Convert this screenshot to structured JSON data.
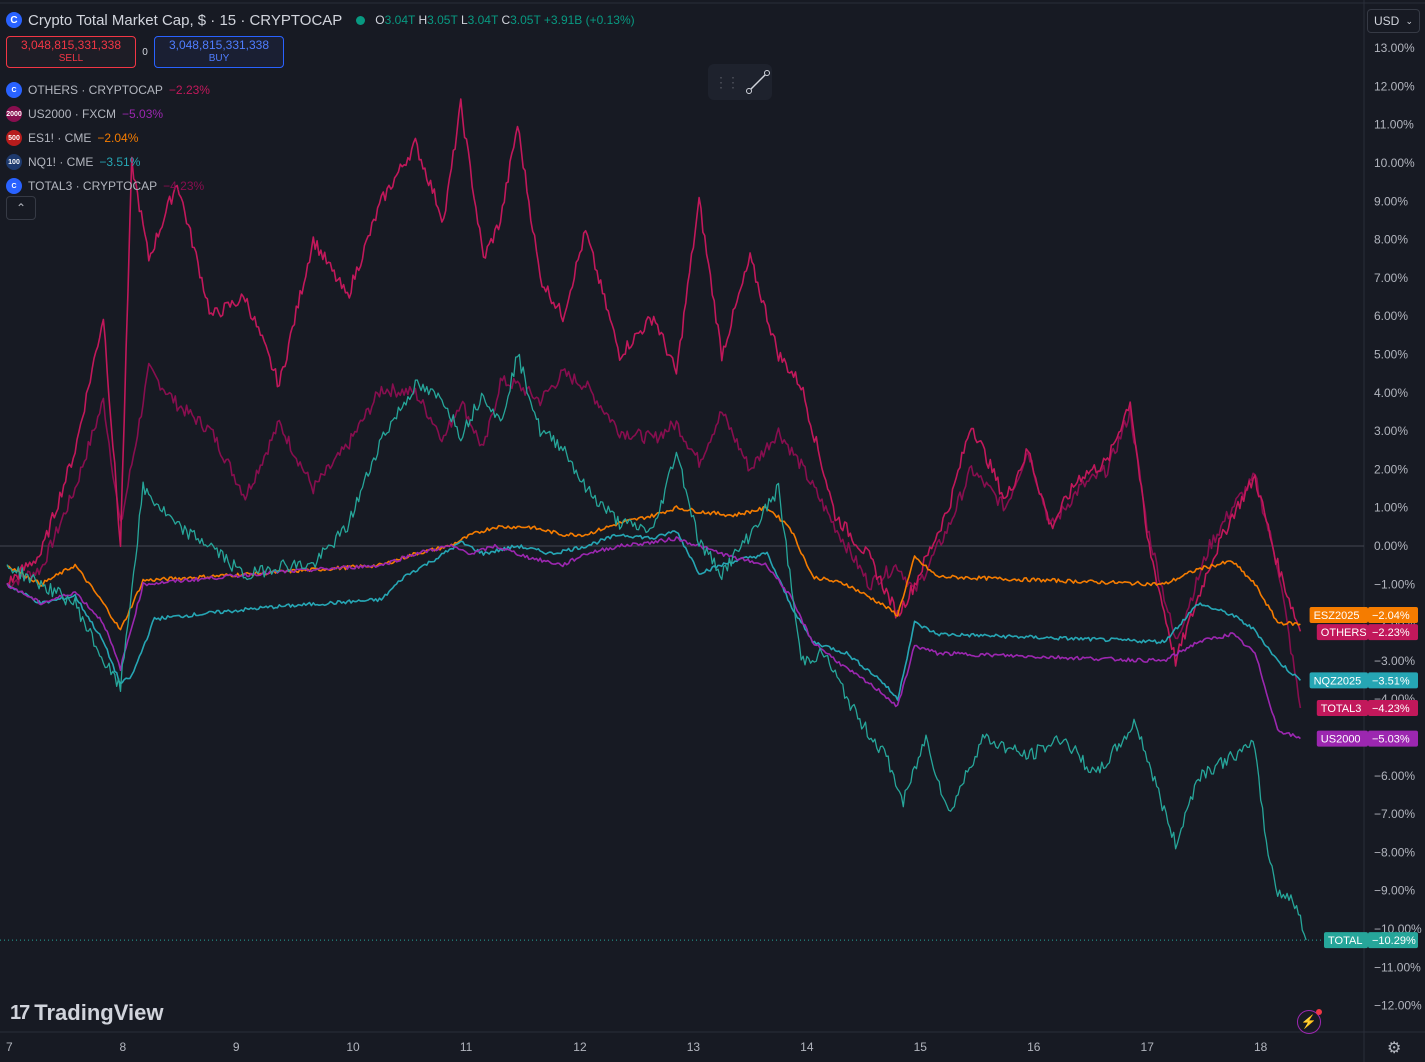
{
  "header": {
    "title": "Crypto Total Market Cap, $ · 15 · CRYPTOCAP",
    "ohlc": [
      {
        "k": "O",
        "v": "3.04T"
      },
      {
        "k": "H",
        "v": "3.05T"
      },
      {
        "k": "L",
        "v": "3.04T"
      },
      {
        "k": "C",
        "v": "3.05T"
      },
      {
        "k": "",
        "v": "+3.91B (+0.13%)"
      }
    ]
  },
  "trade": {
    "sell_price": "3,048,815,331,338",
    "sell_label": "SELL",
    "spread": "0",
    "buy_price": "3,048,815,331,338",
    "buy_label": "BUY"
  },
  "legend": [
    {
      "icon": "C",
      "icon_color": "#2962ff",
      "name": "OTHERS · CRYPTOCAP",
      "change": "−2.23%",
      "color": "#c2185b"
    },
    {
      "icon": "2000",
      "icon_color": "#880e4f",
      "name": "US2000 · FXCM",
      "change": "−5.03%",
      "color": "#9c27b0"
    },
    {
      "icon": "500",
      "icon_color": "#b71c1c",
      "name": "ES1! · CME",
      "change": "−2.04%",
      "color": "#f57c00"
    },
    {
      "icon": "100",
      "icon_color": "#1e3a6e",
      "name": "NQ1! · CME",
      "change": "−3.51%",
      "color": "#26a6b4"
    },
    {
      "icon": "C",
      "icon_color": "#2962ff",
      "name": "TOTAL3 · CRYPTOCAP",
      "change": "−4.23%",
      "color": "#880e4f"
    }
  ],
  "currency": "USD",
  "brand": "TradingView",
  "chart_data": {
    "type": "line",
    "x_ticks": [
      "7",
      "8",
      "9",
      "10",
      "11",
      "12",
      "13",
      "14",
      "15",
      "16",
      "17",
      "18"
    ],
    "y_ticks": [
      "13.00%",
      "12.00%",
      "11.00%",
      "10.00%",
      "9.00%",
      "8.00%",
      "7.00%",
      "6.00%",
      "5.00%",
      "4.00%",
      "3.00%",
      "2.00%",
      "1.00%",
      "0.00%",
      "−1.00%",
      "−2.00%",
      "−3.00%",
      "−4.00%",
      "−5.00%",
      "−6.00%",
      "−7.00%",
      "−8.00%",
      "−9.00%",
      "−10.00%",
      "−11.00%",
      "−12.00%"
    ],
    "ylim": [
      -12.7,
      13.6
    ],
    "xlim": [
      7,
      18.95
    ],
    "series": [
      {
        "name": "TOTAL3",
        "color": "#880e4f",
        "x": [
          7,
          7.3,
          7.6,
          7.85,
          8.0,
          8.25,
          8.5,
          8.8,
          9.1,
          9.4,
          9.7,
          10.0,
          10.3,
          10.6,
          10.85,
          11.0,
          11.2,
          11.35,
          11.5,
          11.7,
          11.9,
          12.1,
          12.4,
          12.7,
          12.9,
          13.1,
          13.3,
          13.55,
          13.8,
          14.0,
          14.3,
          14.6,
          14.85,
          15.0,
          15.3,
          15.5,
          15.8,
          16.0,
          16.2,
          16.45,
          16.7,
          16.9,
          17.05,
          17.3,
          17.6,
          17.8,
          18.0,
          18.2,
          18.4
        ],
        "y": [
          -1.0,
          -0.6,
          1.5,
          3.8,
          0.5,
          4.6,
          3.7,
          3.0,
          1.3,
          3.2,
          1.5,
          2.6,
          4.1,
          4.0,
          2.8,
          3.8,
          2.5,
          4.3,
          4.2,
          3.8,
          4.5,
          4.2,
          3.0,
          2.8,
          3.2,
          2.2,
          3.5,
          2.0,
          3.0,
          2.1,
          0.5,
          -1.0,
          -0.5,
          -1.2,
          0.5,
          2.0,
          1.0,
          2.5,
          0.5,
          1.5,
          2.0,
          3.5,
          0.5,
          -2.5,
          0.0,
          1.0,
          1.8,
          -0.5,
          -4.23
        ]
      },
      {
        "name": "OTHERS",
        "color": "#c2185b",
        "x": [
          7,
          7.3,
          7.6,
          7.85,
          8.0,
          8.1,
          8.25,
          8.5,
          8.8,
          9.1,
          9.4,
          9.7,
          10.0,
          10.3,
          10.6,
          10.85,
          11.0,
          11.2,
          11.35,
          11.5,
          11.7,
          11.9,
          12.1,
          12.4,
          12.7,
          12.9,
          13.1,
          13.3,
          13.55,
          13.8,
          14.0,
          14.3,
          14.6,
          14.85,
          15.0,
          15.3,
          15.5,
          15.8,
          16.0,
          16.2,
          16.45,
          16.7,
          16.9,
          17.05,
          17.3,
          17.6,
          17.8,
          18.0,
          18.2,
          18.4
        ],
        "y": [
          -1.0,
          -0.2,
          2.5,
          6.0,
          0.0,
          10.0,
          7.5,
          9.5,
          6.0,
          6.5,
          4.2,
          8.0,
          6.5,
          9.0,
          10.5,
          8.5,
          11.5,
          7.5,
          8.5,
          11.0,
          7.0,
          6.0,
          8.2,
          5.0,
          6.0,
          4.5,
          9.0,
          5.0,
          7.5,
          5.0,
          4.2,
          0.8,
          -0.3,
          -1.8,
          -1.0,
          1.0,
          3.2,
          1.2,
          2.5,
          0.5,
          1.8,
          2.2,
          3.8,
          0.2,
          -3.0,
          -0.5,
          0.8,
          1.8,
          -0.5,
          -2.23
        ]
      },
      {
        "name": "ES1!",
        "color": "#f57c00",
        "x": [
          7,
          7.3,
          7.6,
          7.85,
          8.0,
          8.2,
          9.3,
          10.3,
          10.6,
          10.9,
          11.1,
          11.3,
          11.6,
          11.9,
          12.1,
          12.4,
          12.7,
          12.9,
          13.1,
          13.4,
          13.7,
          13.9,
          14.1,
          14.4,
          14.7,
          14.85,
          15.0,
          15.2,
          17.2,
          17.5,
          17.8,
          18.0,
          18.2,
          18.4
        ],
        "y": [
          -0.5,
          -1.0,
          -0.5,
          -1.5,
          -2.2,
          -0.9,
          -0.7,
          -0.5,
          -0.2,
          0.0,
          0.3,
          0.5,
          0.5,
          0.3,
          0.3,
          0.6,
          0.8,
          1.0,
          0.9,
          0.8,
          1.0,
          0.5,
          -0.8,
          -1.0,
          -1.5,
          -1.8,
          -0.3,
          -0.8,
          -1.0,
          -0.6,
          -0.4,
          -1.0,
          -2.0,
          -2.04
        ]
      },
      {
        "name": "NQ1!",
        "color": "#26a6b4",
        "x": [
          7,
          7.3,
          7.6,
          7.85,
          8.0,
          8.1,
          8.3,
          9.3,
          10.3,
          10.5,
          10.8,
          11.0,
          11.2,
          11.5,
          11.8,
          12.1,
          12.4,
          12.7,
          12.9,
          13.1,
          13.4,
          13.7,
          13.9,
          14.1,
          14.4,
          14.7,
          14.85,
          15.0,
          15.2,
          17.2,
          17.5,
          17.8,
          18.0,
          18.2,
          18.4
        ],
        "y": [
          -1.0,
          -1.5,
          -1.3,
          -2.5,
          -3.6,
          -3.4,
          -1.9,
          -1.6,
          -1.4,
          -0.8,
          -0.3,
          0.1,
          -0.2,
          0.0,
          -0.2,
          0.0,
          0.3,
          0.2,
          0.4,
          -0.7,
          -0.4,
          -0.2,
          -1.5,
          -2.5,
          -2.8,
          -3.5,
          -4.0,
          -2.0,
          -2.3,
          -2.5,
          -1.5,
          -1.8,
          -2.2,
          -3.0,
          -3.51
        ]
      },
      {
        "name": "US2000",
        "color": "#9c27b0",
        "x": [
          7,
          7.3,
          7.6,
          7.85,
          8.0,
          8.2,
          9.3,
          10.3,
          10.6,
          10.9,
          11.1,
          11.3,
          11.6,
          11.9,
          12.1,
          12.4,
          12.7,
          12.9,
          13.1,
          13.4,
          13.7,
          13.9,
          14.1,
          14.4,
          14.7,
          14.85,
          15.0,
          15.2,
          17.2,
          17.5,
          17.8,
          18.0,
          18.2,
          18.4
        ],
        "y": [
          -1.0,
          -1.5,
          -1.2,
          -2.0,
          -3.2,
          -1.0,
          -0.7,
          -0.5,
          -0.2,
          0.0,
          -0.2,
          0.0,
          -0.3,
          -0.5,
          -0.2,
          0.0,
          0.1,
          0.2,
          0.0,
          -0.3,
          -0.5,
          -1.3,
          -2.5,
          -3.2,
          -3.8,
          -4.2,
          -2.6,
          -2.8,
          -3.0,
          -2.5,
          -2.3,
          -2.8,
          -4.8,
          -5.03
        ]
      },
      {
        "name": "TOTAL",
        "color": "#26a69a",
        "x": [
          7,
          7.3,
          7.6,
          7.85,
          8.0,
          8.2,
          8.5,
          8.8,
          9.1,
          9.4,
          9.7,
          10.0,
          10.3,
          10.6,
          10.85,
          11.0,
          11.2,
          11.35,
          11.5,
          11.7,
          11.9,
          12.1,
          12.4,
          12.7,
          12.9,
          13.1,
          13.3,
          13.55,
          13.8,
          14.0,
          14.2,
          14.5,
          14.75,
          14.9,
          15.1,
          15.3,
          15.6,
          16.0,
          16.3,
          16.6,
          16.8,
          16.95,
          17.1,
          17.3,
          17.5,
          17.8,
          18.0,
          18.1,
          18.2,
          18.35,
          18.45
        ],
        "y": [
          -0.5,
          -1.0,
          -1.5,
          -3.0,
          -3.7,
          1.5,
          0.5,
          0.0,
          -0.8,
          -0.5,
          -0.5,
          0.5,
          2.8,
          4.2,
          3.8,
          2.9,
          4.0,
          3.2,
          5.0,
          3.0,
          2.6,
          1.5,
          0.6,
          0.4,
          2.5,
          0.1,
          -0.7,
          0.3,
          1.5,
          -3.0,
          -2.8,
          -4.5,
          -5.5,
          -6.7,
          -5.0,
          -7.0,
          -5.0,
          -5.5,
          -5.0,
          -6.0,
          -5.2,
          -4.6,
          -6.0,
          -7.8,
          -6.0,
          -5.5,
          -5.2,
          -7.8,
          -9.0,
          -9.3,
          -10.29
        ]
      }
    ],
    "labels": [
      {
        "name": "ESZ2025",
        "value": "−2.04%",
        "color": "#f57c00",
        "at": -1.8
      },
      {
        "name": "OTHERS",
        "value": "−2.23%",
        "color": "#c2185b",
        "at": -2.25
      },
      {
        "name": "NQZ2025",
        "value": "−3.51%",
        "color": "#26a6b4",
        "at": -3.51
      },
      {
        "name": "TOTAL3",
        "value": "−4.23%",
        "color": "#c2185b",
        "at": -4.23
      },
      {
        "name": "US2000",
        "value": "−5.03%",
        "color": "#9c27b0",
        "at": -5.03
      },
      {
        "name": "TOTAL",
        "value": "−10.29%",
        "color": "#26a69a",
        "at": -10.29
      }
    ]
  }
}
